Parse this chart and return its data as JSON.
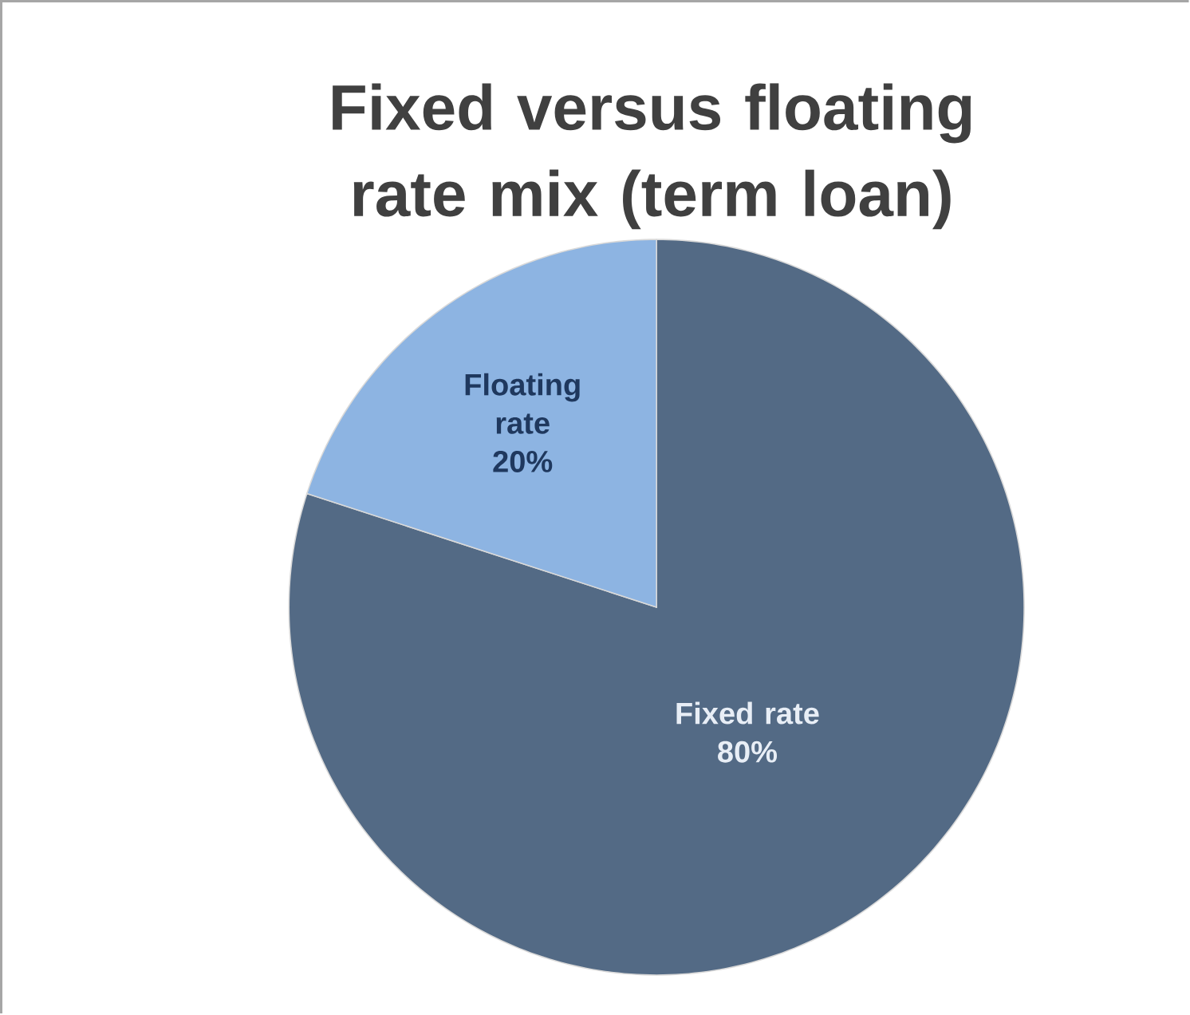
{
  "chart_data": {
    "type": "pie",
    "title": "Fixed versus floating rate mix (term loan)",
    "categories": [
      "Fixed rate",
      "Floating rate"
    ],
    "values": [
      80,
      20
    ],
    "value_labels": [
      "80%",
      "20%"
    ],
    "colors": [
      "#536a85",
      "#8db4e2"
    ]
  }
}
